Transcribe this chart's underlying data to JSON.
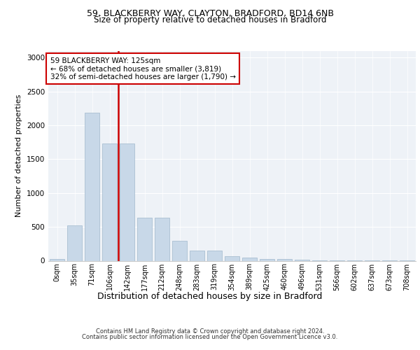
{
  "title_line1": "59, BLACKBERRY WAY, CLAYTON, BRADFORD, BD14 6NB",
  "title_line2": "Size of property relative to detached houses in Bradford",
  "xlabel": "Distribution of detached houses by size in Bradford",
  "ylabel": "Number of detached properties",
  "footer_line1": "Contains HM Land Registry data © Crown copyright and database right 2024.",
  "footer_line2": "Contains public sector information licensed under the Open Government Licence v3.0.",
  "annotation_line1": "59 BLACKBERRY WAY: 125sqm",
  "annotation_line2": "← 68% of detached houses are smaller (3,819)",
  "annotation_line3": "32% of semi-detached houses are larger (1,790) →",
  "bar_labels": [
    "0sqm",
    "35sqm",
    "71sqm",
    "106sqm",
    "142sqm",
    "177sqm",
    "212sqm",
    "248sqm",
    "283sqm",
    "319sqm",
    "354sqm",
    "389sqm",
    "425sqm",
    "460sqm",
    "496sqm",
    "531sqm",
    "566sqm",
    "602sqm",
    "637sqm",
    "673sqm",
    "708sqm"
  ],
  "bar_values": [
    25,
    525,
    2185,
    1730,
    1730,
    635,
    635,
    290,
    150,
    150,
    70,
    50,
    30,
    25,
    15,
    10,
    5,
    5,
    5,
    3,
    3
  ],
  "bar_color": "#c8d8e8",
  "bar_edgecolor": "#a0b8cc",
  "vline_x": 3.5,
  "vline_color": "#cc0000",
  "ylim": [
    0,
    3100
  ],
  "yticks": [
    0,
    500,
    1000,
    1500,
    2000,
    2500,
    3000
  ],
  "bg_color": "#eef2f7",
  "annotation_box_edgecolor": "#cc0000",
  "annotation_box_facecolor": "#ffffff",
  "title1_fontsize": 9,
  "title2_fontsize": 8.5,
  "ylabel_fontsize": 8,
  "xlabel_fontsize": 9,
  "tick_fontsize": 7,
  "footer_fontsize": 6,
  "annotation_fontsize": 7.5
}
